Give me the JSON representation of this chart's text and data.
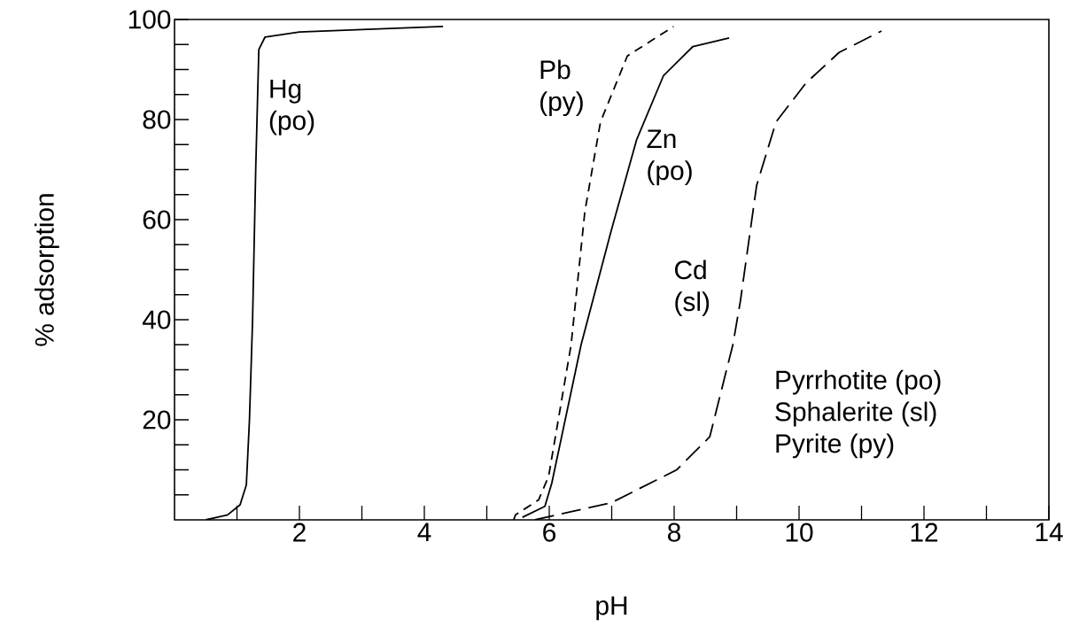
{
  "chart_data": {
    "type": "line",
    "xlabel": "pH",
    "ylabel": "% adsorption",
    "xlim": [
      0,
      14
    ],
    "ylim": [
      0,
      100
    ],
    "xticks": [
      {
        "value": 1,
        "label": null
      },
      2,
      {
        "value": 3,
        "label": null
      },
      4,
      {
        "value": 5,
        "label": null
      },
      6,
      {
        "value": 7,
        "label": null
      },
      8,
      {
        "value": 9,
        "label": null
      },
      10,
      {
        "value": 11,
        "label": null
      },
      12,
      {
        "value": 13,
        "label": null
      },
      14
    ],
    "yticks": [
      {
        "value": 5,
        "label": null
      },
      {
        "value": 10,
        "label": null
      },
      {
        "value": 15,
        "label": null
      },
      20,
      {
        "value": 25,
        "label": null
      },
      {
        "value": 30,
        "label": null
      },
      {
        "value": 35,
        "label": null
      },
      40,
      {
        "value": 45,
        "label": null
      },
      {
        "value": 50,
        "label": null
      },
      {
        "value": 55,
        "label": null
      },
      60,
      {
        "value": 65,
        "label": null
      },
      {
        "value": 70,
        "label": null
      },
      {
        "value": 75,
        "label": null
      },
      80,
      {
        "value": 85,
        "label": null
      },
      {
        "value": 90,
        "label": null
      },
      {
        "value": 95,
        "label": null
      },
      100
    ],
    "grid": false,
    "marker": "none",
    "series": [
      {
        "name": "Hg (po)",
        "color": "#000000",
        "line_style": "solid",
        "x": [
          0.5,
          0.85,
          1.05,
          1.15,
          1.2,
          1.25,
          1.3,
          1.35,
          1.45,
          2.0,
          3.0,
          4.3
        ],
        "values": [
          0,
          1,
          3,
          7,
          20,
          40,
          70,
          94,
          96.5,
          97.5,
          98,
          98.6
        ]
      },
      {
        "name": "Pb (py)",
        "color": "#000000",
        "line_style": "dashed",
        "x": [
          5.43,
          5.46,
          5.83,
          5.99,
          6.35,
          6.57,
          6.82,
          7.25,
          7.99
        ],
        "values": [
          0,
          1,
          4,
          8.7,
          35,
          61.6,
          79.5,
          92.7,
          98.6
        ]
      },
      {
        "name": "Zn (po)",
        "color": "#000000",
        "line_style": "solid",
        "x": [
          5.57,
          5.93,
          6.04,
          6.51,
          6.99,
          7.4,
          7.83,
          8.3,
          8.88
        ],
        "values": [
          0.5,
          2.7,
          7.3,
          35,
          57.7,
          76,
          88.8,
          94.6,
          96.3
        ]
      },
      {
        "name": "Cd (sl)",
        "color": "#000000",
        "line_style": "dashed",
        "x": [
          5.77,
          6.99,
          8.04,
          8.57,
          8.94,
          9.06,
          9.32,
          9.63,
          10.11,
          10.64,
          11.32
        ],
        "values": [
          0,
          3.4,
          10,
          16.6,
          35,
          43.7,
          66.8,
          79.5,
          87.3,
          93.4,
          97.7
        ]
      }
    ],
    "annotations": [
      "Pyrrhotite (po)",
      "Sphalerite (sl)",
      "Pyrite (py)"
    ]
  }
}
